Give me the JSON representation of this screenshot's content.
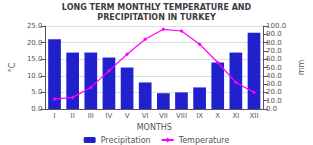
{
  "chart_data": {
    "type": "bar",
    "title": "LONG TERM MONTHLY TEMPERATURE AND\nPRECIPITATION IN TURKEY",
    "xlabel": "MONTHS",
    "ylabel": "°C",
    "y2label": "mm",
    "categories": [
      "I",
      "II",
      "III",
      "IV",
      "V",
      "VI",
      "VII",
      "VIII",
      "IX",
      "X",
      "XI",
      "XII"
    ],
    "series": [
      {
        "name": "Precipitation",
        "type": "bar",
        "axis": "y2",
        "color": "#2020cc",
        "values": [
          84.0,
          68.0,
          68.0,
          62.0,
          50.0,
          32.0,
          19.0,
          20.0,
          26.0,
          56.0,
          68.0,
          92.0
        ]
      },
      {
        "name": "Temperature",
        "type": "line",
        "color": "#ff00ff",
        "marker": "diamond",
        "values": [
          3.0,
          3.5,
          6.5,
          11.5,
          16.5,
          21.0,
          24.0,
          23.5,
          19.5,
          14.0,
          8.0,
          5.0
        ]
      }
    ],
    "ylim": [
      0.0,
      25.0
    ],
    "yticks": [
      {
        "value": 0,
        "label": "0.0"
      },
      {
        "value": 5,
        "label": "5.0"
      },
      {
        "value": 10,
        "label": "10.0"
      },
      {
        "value": 15,
        "label": "15.0"
      },
      {
        "value": 20,
        "label": "20.0"
      },
      {
        "value": 25,
        "label": "25.0"
      }
    ],
    "y2lim": [
      0.0,
      100.0
    ],
    "y2ticks": [
      {
        "value": 0,
        "label": "0.0"
      },
      {
        "value": 10,
        "label": "10.0"
      },
      {
        "value": 20,
        "label": "20.0"
      },
      {
        "value": 30,
        "label": "30.0"
      },
      {
        "value": 40,
        "label": "40.0"
      },
      {
        "value": 50,
        "label": "50.0"
      },
      {
        "value": 60,
        "label": "60.0"
      },
      {
        "value": 70,
        "label": "70.0"
      },
      {
        "value": 80,
        "label": "80.0"
      },
      {
        "value": 90,
        "label": "90.0"
      },
      {
        "value": 100,
        "label": "100.0"
      }
    ],
    "grid": true,
    "legend": "bottom"
  }
}
